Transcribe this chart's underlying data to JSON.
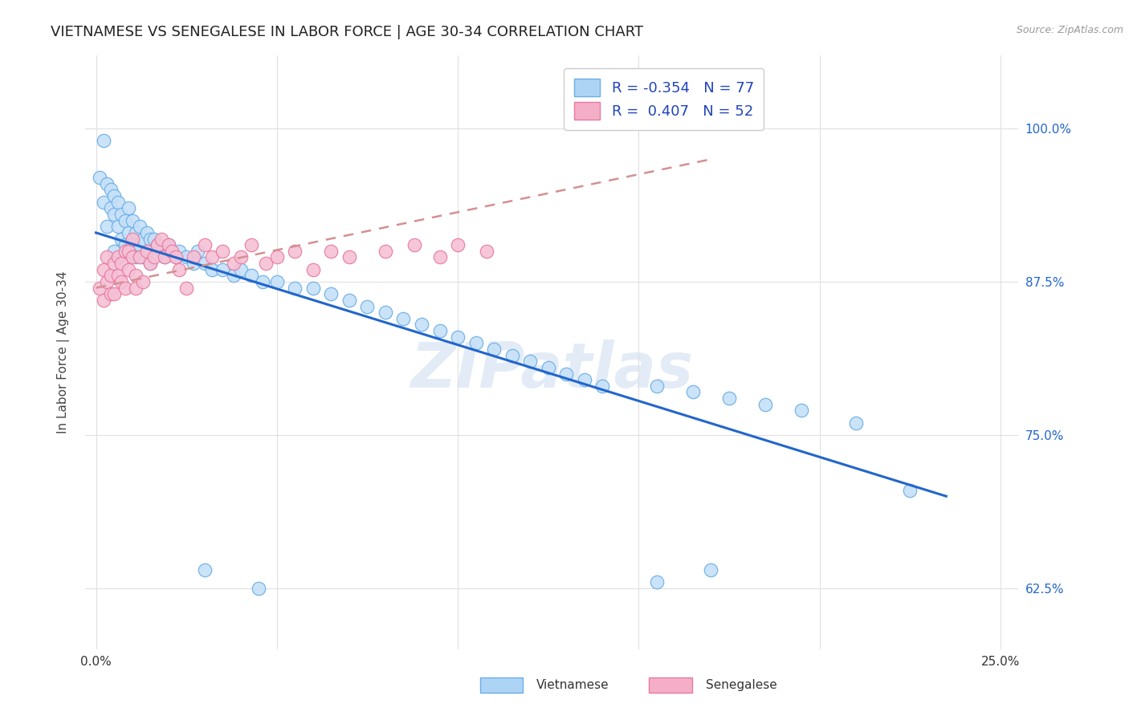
{
  "title": "VIETNAMESE VS SENEGALESE IN LABOR FORCE | AGE 30-34 CORRELATION CHART",
  "source_text": "Source: ZipAtlas.com",
  "ylabel": "In Labor Force | Age 30-34",
  "xlim": [
    -0.003,
    0.255
  ],
  "ylim": [
    0.575,
    1.06
  ],
  "xtick_positions": [
    0.0,
    0.05,
    0.1,
    0.15,
    0.2,
    0.25
  ],
  "xtick_labels": [
    "0.0%",
    "",
    "",
    "",
    "",
    "25.0%"
  ],
  "ytick_positions": [
    0.625,
    0.75,
    0.875,
    1.0
  ],
  "ytick_labels_right": [
    "62.5%",
    "75.0%",
    "87.5%",
    "100.0%"
  ],
  "legend_R_vietnamese": "-0.354",
  "legend_N_vietnamese": "77",
  "legend_R_senegalese": "0.407",
  "legend_N_senegalese": "52",
  "legend_color_vietnamese": "#aed4f5",
  "legend_color_senegalese": "#f5aec8",
  "scatter_fill_vietnamese": "#c5e0f8",
  "scatter_edge_vietnamese": "#6aaee8",
  "scatter_fill_senegalese": "#f5c0d5",
  "scatter_edge_senegalese": "#e87aa0",
  "trendline_color_vietnamese": "#2266cc",
  "trendline_color_senegalese": "#cc3366",
  "trendline_color_sene_dashed": "#ddaaaa",
  "background_color": "#ffffff",
  "watermark_text": "ZIPatlas",
  "title_color": "#222222",
  "title_fontsize": 13,
  "axis_label_color": "#444444",
  "right_tick_color": "#2266cc",
  "grid_color": "#e0e0e0",
  "legend_text_color": "#2244bb"
}
